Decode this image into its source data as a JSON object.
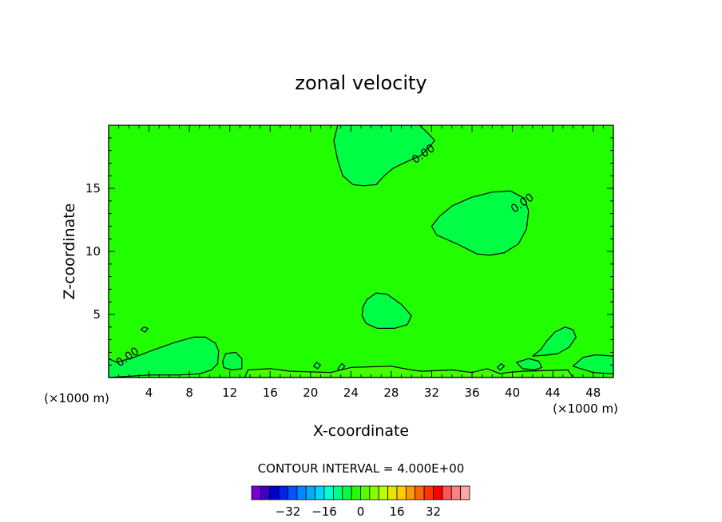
{
  "chart_data": {
    "type": "contour",
    "title": "zonal velocity",
    "xlabel": "X-coordinate",
    "ylabel": "Z-coordinate",
    "x_unit_label": "(×1000 m)",
    "y_unit_label": "(×1000 m)",
    "xlim": [
      0,
      50
    ],
    "ylim": [
      0,
      20
    ],
    "x_ticks": [
      4,
      8,
      12,
      16,
      20,
      24,
      28,
      32,
      36,
      40,
      44,
      48
    ],
    "y_ticks": [
      5,
      10,
      15
    ],
    "background_level_color": "#22ff00",
    "contour_labels": [
      {
        "text": "0.00",
        "x": 31.2,
        "y": 17.7
      },
      {
        "text": "0.00",
        "x": 41.0,
        "y": 13.8
      },
      {
        "text": "0.00",
        "x": 1.9,
        "y": 1.6
      }
    ],
    "regions": [
      {
        "name": "upper-center",
        "fill": "#00ff44",
        "points": [
          [
            22.7,
            20
          ],
          [
            22.3,
            18.8
          ],
          [
            22.7,
            17.2
          ],
          [
            23.2,
            16.0
          ],
          [
            24.2,
            15.3
          ],
          [
            25.3,
            15.2
          ],
          [
            26.5,
            15.3
          ],
          [
            27.3,
            16.0
          ],
          [
            28.2,
            16.6
          ],
          [
            29.5,
            17.1
          ],
          [
            30.9,
            17.6
          ],
          [
            31.8,
            18.3
          ],
          [
            32.3,
            18.8
          ],
          [
            31.6,
            19.4
          ],
          [
            30.8,
            20
          ]
        ]
      },
      {
        "name": "upper-right",
        "fill": "#00ff44",
        "points": [
          [
            32.0,
            12.0
          ],
          [
            32.8,
            12.8
          ],
          [
            34.0,
            13.6
          ],
          [
            36.0,
            14.3
          ],
          [
            38.0,
            14.7
          ],
          [
            39.8,
            14.8
          ],
          [
            41.2,
            14.2
          ],
          [
            41.6,
            13.2
          ],
          [
            41.4,
            11.8
          ],
          [
            40.6,
            10.6
          ],
          [
            39.2,
            9.9
          ],
          [
            37.8,
            9.7
          ],
          [
            36.5,
            9.8
          ],
          [
            34.5,
            10.6
          ],
          [
            32.5,
            11.3
          ]
        ]
      },
      {
        "name": "middle",
        "fill": "#00ff44",
        "points": [
          [
            25.2,
            5.6
          ],
          [
            25.6,
            6.2
          ],
          [
            26.5,
            6.7
          ],
          [
            27.6,
            6.6
          ],
          [
            29.0,
            5.8
          ],
          [
            30.0,
            4.9
          ],
          [
            29.6,
            4.2
          ],
          [
            28.3,
            3.9
          ],
          [
            26.6,
            3.9
          ],
          [
            25.5,
            4.3
          ],
          [
            25.1,
            4.9
          ]
        ]
      },
      {
        "name": "lower-left",
        "fill": "#00ff44",
        "points": [
          [
            0,
            1.5
          ],
          [
            0.8,
            1.2
          ],
          [
            2.5,
            1.6
          ],
          [
            4.5,
            2.2
          ],
          [
            6.6,
            2.8
          ],
          [
            8.4,
            3.2
          ],
          [
            9.6,
            3.2
          ],
          [
            10.6,
            2.7
          ],
          [
            10.9,
            2.1
          ],
          [
            10.8,
            1.1
          ],
          [
            10.2,
            0.6
          ],
          [
            9.0,
            0.3
          ],
          [
            7.0,
            0.2
          ],
          [
            4.0,
            0.2
          ],
          [
            0,
            0
          ]
        ]
      },
      {
        "name": "lower-right",
        "fill": "#00ff44",
        "points": [
          [
            42.0,
            1.7
          ],
          [
            42.8,
            2.2
          ],
          [
            43.4,
            2.9
          ],
          [
            44.2,
            3.6
          ],
          [
            45.2,
            4.0
          ],
          [
            46.0,
            3.8
          ],
          [
            46.3,
            3.2
          ],
          [
            45.6,
            2.4
          ],
          [
            44.5,
            1.9
          ],
          [
            43.6,
            1.8
          ]
        ]
      },
      {
        "name": "lower-right-2",
        "fill": "#00ff44",
        "points": [
          [
            40.4,
            1.2
          ],
          [
            41.6,
            1.5
          ],
          [
            42.6,
            1.3
          ],
          [
            42.9,
            0.8
          ],
          [
            42.2,
            0.6
          ],
          [
            41.0,
            0.7
          ]
        ]
      },
      {
        "name": "lower-right-3",
        "fill": "#00ff44",
        "points": [
          [
            46.0,
            0.9
          ],
          [
            47.0,
            1.6
          ],
          [
            48.2,
            1.8
          ],
          [
            50,
            1.7
          ],
          [
            50,
            0.3
          ],
          [
            48.0,
            0.4
          ]
        ]
      },
      {
        "name": "small-left",
        "fill": "#00ff44",
        "points": [
          [
            11.3,
            1.3
          ],
          [
            11.6,
            1.9
          ],
          [
            12.6,
            2.0
          ],
          [
            13.2,
            1.5
          ],
          [
            13.2,
            0.7
          ],
          [
            12.2,
            0.6
          ],
          [
            11.4,
            0.8
          ]
        ]
      },
      {
        "name": "small-dot-1",
        "fill": "#00ff44",
        "points": [
          [
            3.2,
            3.8
          ],
          [
            3.5,
            4.0
          ],
          [
            3.9,
            3.9
          ],
          [
            3.6,
            3.6
          ]
        ]
      },
      {
        "name": "small-dot-2",
        "fill": "#00ff44",
        "points": [
          [
            20.3,
            0.9
          ],
          [
            20.6,
            1.2
          ],
          [
            21.0,
            1.0
          ],
          [
            20.7,
            0.7
          ]
        ]
      },
      {
        "name": "small-dot-3",
        "fill": "#00ff44",
        "points": [
          [
            22.7,
            0.7
          ],
          [
            23.1,
            1.1
          ],
          [
            23.4,
            0.9
          ],
          [
            23.0,
            0.5
          ]
        ]
      },
      {
        "name": "small-dot-4",
        "fill": "#00ff44",
        "points": [
          [
            38.5,
            0.8
          ],
          [
            38.9,
            1.1
          ],
          [
            39.2,
            0.9
          ],
          [
            38.8,
            0.6
          ]
        ]
      },
      {
        "name": "bottom-strip",
        "fill": "#44ff00",
        "points": [
          [
            13.5,
            0
          ],
          [
            13.8,
            0.6
          ],
          [
            16.0,
            0.7
          ],
          [
            18.0,
            0.5
          ],
          [
            22.0,
            0.4
          ],
          [
            24.0,
            0.8
          ],
          [
            28.0,
            0.9
          ],
          [
            30.0,
            0.6
          ],
          [
            31.0,
            0.5
          ],
          [
            34.0,
            0.6
          ],
          [
            36.0,
            0.4
          ],
          [
            37.5,
            0.7
          ],
          [
            38.8,
            0.3
          ],
          [
            39.5,
            0.4
          ],
          [
            41.0,
            0.5
          ],
          [
            45.5,
            0.6
          ],
          [
            46.0,
            0
          ]
        ]
      }
    ],
    "colorbar": {
      "title": "CONTOUR INTERVAL = 4.000E+00",
      "colors": [
        "#7a00cc",
        "#3d00cc",
        "#0000cc",
        "#0022ee",
        "#0055ff",
        "#0088ff",
        "#00aaff",
        "#00d4ff",
        "#00ffd0",
        "#00ff88",
        "#00ff44",
        "#22ff00",
        "#55ff00",
        "#88ff00",
        "#bbff00",
        "#e8e600",
        "#ffcc00",
        "#ff9900",
        "#ff6600",
        "#ff3300",
        "#ff0000",
        "#ff5555",
        "#ff8080",
        "#ffa6a6"
      ],
      "tick_labels": [
        "−32",
        "−16",
        "0",
        "16",
        "32"
      ],
      "tick_values": [
        -32,
        -16,
        0,
        16,
        32
      ],
      "range": [
        -48,
        48
      ]
    }
  }
}
